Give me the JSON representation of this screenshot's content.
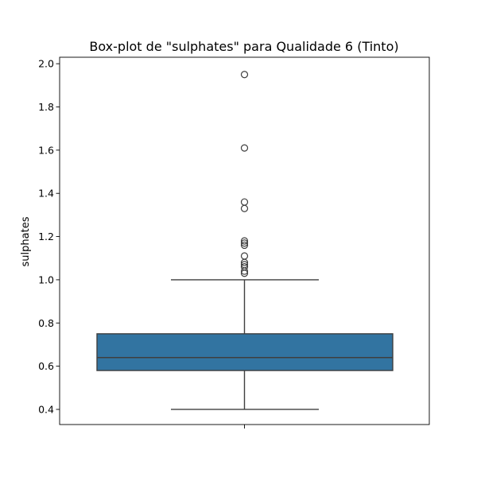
{
  "chart_data": {
    "type": "boxplot",
    "title": "Box-plot de \"sulphates\" para Qualidade 6 (Tinto)",
    "xlabel": "",
    "ylabel": "sulphates",
    "ylim": [
      0.33,
      2.03
    ],
    "yticks": [
      0.4,
      0.6,
      0.8,
      1.0,
      1.2,
      1.4,
      1.6,
      1.8,
      2.0
    ],
    "ytick_labels": [
      "0.4",
      "0.6",
      "0.8",
      "1.0",
      "1.2",
      "1.4",
      "1.6",
      "1.8",
      "2.0"
    ],
    "grid": false,
    "box": {
      "whisker_low": 0.4,
      "q1": 0.58,
      "median": 0.64,
      "q3": 0.75,
      "whisker_high": 1.0
    },
    "outliers": [
      1.03,
      1.04,
      1.06,
      1.07,
      1.08,
      1.11,
      1.16,
      1.17,
      1.18,
      1.33,
      1.36,
      1.61,
      1.95
    ],
    "colors": {
      "box_fill": "#3274a1",
      "line": "#3f3f3f",
      "axis": "#000000"
    }
  }
}
